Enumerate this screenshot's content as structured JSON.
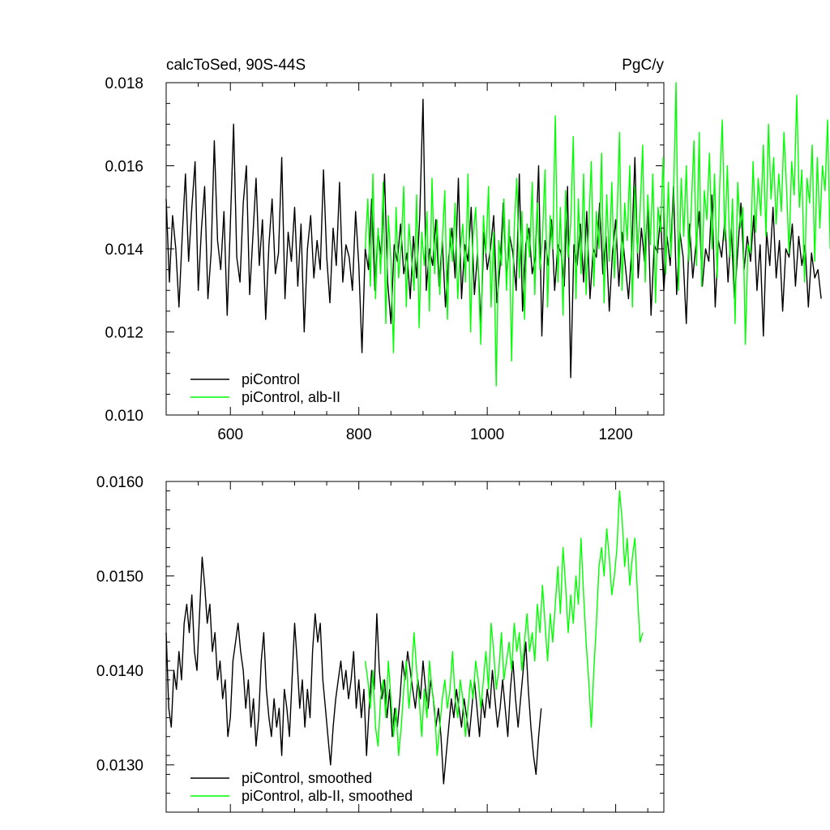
{
  "chart_data": [
    {
      "type": "line",
      "title_left": "calcToSed, 90S-44S",
      "title_right": "PgC/y",
      "xlabel": "",
      "ylabel": "",
      "xlim": [
        500,
        1275
      ],
      "ylim": [
        0.01,
        0.018
      ],
      "x_ticks": [
        600,
        800,
        1000,
        1200
      ],
      "x_tick_labels": [
        "600",
        "800",
        "1000",
        "1200"
      ],
      "x_minor_step": 50,
      "y_ticks": [
        0.01,
        0.012,
        0.014,
        0.016,
        0.018
      ],
      "y_tick_labels": [
        "0.010",
        "0.012",
        "0.014",
        "0.016",
        "0.018"
      ],
      "y_minor_step": 0.0005,
      "grid": false,
      "legend_position": "bottom-left",
      "series": [
        {
          "name": "piControl",
          "color": "#000000",
          "x_start": 500,
          "x_step": 5,
          "values": [
            0.0152,
            0.0132,
            0.0148,
            0.014,
            0.0126,
            0.0143,
            0.0158,
            0.0137,
            0.015,
            0.0161,
            0.013,
            0.0145,
            0.0155,
            0.0128,
            0.0139,
            0.0166,
            0.0142,
            0.0135,
            0.0149,
            0.0124,
            0.0146,
            0.017,
            0.0138,
            0.0132,
            0.0151,
            0.016,
            0.0129,
            0.0143,
            0.0157,
            0.0136,
            0.0147,
            0.0123,
            0.0141,
            0.0152,
            0.0134,
            0.0139,
            0.0162,
            0.0128,
            0.0144,
            0.0137,
            0.015,
            0.0131,
            0.0146,
            0.012,
            0.014,
            0.0148,
            0.0133,
            0.0142,
            0.0135,
            0.0159,
            0.0138,
            0.0127,
            0.0145,
            0.0136,
            0.0156,
            0.0132,
            0.0141,
            0.0138,
            0.013,
            0.0149,
            0.0136,
            0.0115,
            0.014,
            0.0135,
            0.0152,
            0.013,
            0.0144,
            0.0138,
            0.0158,
            0.0132,
            0.0122,
            0.0141,
            0.0137,
            0.0146,
            0.0134,
            0.0139,
            0.0128,
            0.0143,
            0.0133,
            0.0148,
            0.0176,
            0.013,
            0.014,
            0.0136,
            0.0147,
            0.0131,
            0.0142,
            0.0126,
            0.0138,
            0.0145,
            0.0133,
            0.0157,
            0.0128,
            0.0141,
            0.0137,
            0.015,
            0.0129,
            0.0139,
            0.0122,
            0.0144,
            0.0135,
            0.014,
            0.0148,
            0.0127,
            0.0136,
            0.0151,
            0.0133,
            0.0143,
            0.0139,
            0.013,
            0.0158,
            0.0125,
            0.0141,
            0.0145,
            0.0134,
            0.0138,
            0.016,
            0.0119,
            0.0142,
            0.0136,
            0.0147,
            0.013,
            0.0141,
            0.0139,
            0.0131,
            0.0155,
            0.0109,
            0.0141,
            0.0136,
            0.0146,
            0.0132,
            0.0149,
            0.0128,
            0.014,
            0.0138,
            0.0151,
            0.0134,
            0.0143,
            0.0125,
            0.0139,
            0.0147,
            0.0131,
            0.0144,
            0.0136,
            0.0128,
            0.014,
            0.0162,
            0.0133,
            0.0145,
            0.0137,
            0.015,
            0.0124,
            0.0141,
            0.0139,
            0.0148,
            0.013,
            0.0143,
            0.0136,
            0.0155,
            0.0129,
            0.0144,
            0.0138,
            0.0122,
            0.0146,
            0.0133,
            0.0141,
            0.0149,
            0.0131,
            0.014,
            0.0137,
            0.0153,
            0.0126,
            0.0142,
            0.0138,
            0.0147,
            0.0132,
            0.0145,
            0.0128,
            0.0139,
            0.0151,
            0.0135,
            0.0143,
            0.0137,
            0.0148,
            0.013,
            0.0141,
            0.0119,
            0.0144,
            0.0136,
            0.015,
            0.0133,
            0.0142,
            0.0125,
            0.014,
            0.0138,
            0.0146,
            0.0131,
            0.0143,
            0.0136,
            0.0141,
            0.0126,
            0.0139,
            0.0133,
            0.0135,
            0.0128
          ]
        },
        {
          "name": "piControl, alb-II",
          "color": "#00ff00",
          "x_start": 810,
          "x_step": 4,
          "values": [
            0.014,
            0.0152,
            0.0131,
            0.0158,
            0.0128,
            0.0145,
            0.0134,
            0.0156,
            0.0122,
            0.0148,
            0.0137,
            0.0115,
            0.015,
            0.0133,
            0.0141,
            0.0155,
            0.0126,
            0.0146,
            0.0138,
            0.013,
            0.0153,
            0.0121,
            0.0144,
            0.0136,
            0.0149,
            0.0125,
            0.0157,
            0.0134,
            0.0147,
            0.0129,
            0.0142,
            0.0154,
            0.0123,
            0.0145,
            0.0137,
            0.0151,
            0.0128,
            0.014,
            0.0146,
            0.0132,
            0.0158,
            0.012,
            0.0143,
            0.015,
            0.0135,
            0.0117,
            0.0148,
            0.0139,
            0.0155,
            0.0126,
            0.0144,
            0.0107,
            0.0142,
            0.0136,
            0.0152,
            0.013,
            0.0147,
            0.0113,
            0.0145,
            0.0157,
            0.0133,
            0.0149,
            0.0123,
            0.0146,
            0.0138,
            0.0156,
            0.0129,
            0.0151,
            0.0135,
            0.0143,
            0.0159,
            0.0126,
            0.0148,
            0.014,
            0.0172,
            0.0132,
            0.015,
            0.0124,
            0.0154,
            0.0138,
            0.0146,
            0.0167,
            0.0128,
            0.0152,
            0.0134,
            0.0158,
            0.0129,
            0.0145,
            0.0161,
            0.0131,
            0.0149,
            0.014,
            0.0163,
            0.0127,
            0.0153,
            0.0137,
            0.0156,
            0.0133,
            0.0147,
            0.0168,
            0.013,
            0.0151,
            0.0142,
            0.016,
            0.0126,
            0.0155,
            0.0139,
            0.0149,
            0.0165,
            0.0132,
            0.0153,
            0.0141,
            0.0158,
            0.0127,
            0.015,
            0.0144,
            0.0162,
            0.0134,
            0.0156,
            0.0138,
            0.0152,
            0.018,
            0.013,
            0.0157,
            0.0143,
            0.016,
            0.0137,
            0.0151,
            0.0166,
            0.0136,
            0.0168,
            0.0131,
            0.0154,
            0.0147,
            0.0163,
            0.014,
            0.0158,
            0.0133,
            0.0155,
            0.0171,
            0.0142,
            0.016,
            0.0138,
            0.0152,
            0.0122,
            0.0156,
            0.0145,
            0.015,
            0.0117,
            0.0141,
            0.0139,
            0.0161,
            0.0144,
            0.0157,
            0.0148,
            0.0165,
            0.0143,
            0.017,
            0.0152,
            0.0162,
            0.0146,
            0.0158,
            0.0149,
            0.0168,
            0.0155,
            0.0139,
            0.0161,
            0.0153,
            0.0177,
            0.015,
            0.0159,
            0.0132,
            0.0157,
            0.0151,
            0.0165,
            0.0137,
            0.0162,
            0.0145,
            0.016,
            0.0154,
            0.0171,
            0.014,
            0.015,
            0.0136,
            0.0148,
            0.0143
          ]
        }
      ]
    },
    {
      "type": "line",
      "xlabel": "",
      "ylabel": "",
      "xlim": [
        500,
        1275
      ],
      "ylim": [
        0.0125,
        0.016
      ],
      "x_ticks": [
        600,
        800,
        1000,
        1200
      ],
      "x_minor_step": 50,
      "y_ticks": [
        0.013,
        0.014,
        0.015,
        0.016
      ],
      "y_tick_labels": [
        "0.0130",
        "0.0140",
        "0.0150",
        "0.0160"
      ],
      "y_minor_step": 0.0002,
      "grid": false,
      "legend_position": "bottom-left",
      "series": [
        {
          "name": "piControl, smoothed",
          "color": "#000000",
          "x_start": 500,
          "x_step": 4,
          "values": [
            0.0144,
            0.0136,
            0.0134,
            0.014,
            0.0138,
            0.0142,
            0.0139,
            0.0145,
            0.0147,
            0.0144,
            0.0148,
            0.0142,
            0.014,
            0.0146,
            0.0152,
            0.0149,
            0.0145,
            0.0147,
            0.0142,
            0.0144,
            0.0139,
            0.0141,
            0.0137,
            0.0139,
            0.0133,
            0.0135,
            0.0141,
            0.0143,
            0.0145,
            0.0142,
            0.014,
            0.0136,
            0.0139,
            0.0134,
            0.0137,
            0.0132,
            0.0135,
            0.0141,
            0.0144,
            0.0138,
            0.0135,
            0.0133,
            0.0137,
            0.0134,
            0.0136,
            0.0131,
            0.0138,
            0.0136,
            0.0133,
            0.0139,
            0.0145,
            0.0141,
            0.0136,
            0.0139,
            0.0134,
            0.0138,
            0.0135,
            0.0142,
            0.0146,
            0.0143,
            0.0145,
            0.0139,
            0.0136,
            0.0133,
            0.013,
            0.0134,
            0.0137,
            0.0139,
            0.0141,
            0.0138,
            0.014,
            0.0137,
            0.0139,
            0.0142,
            0.0136,
            0.0139,
            0.0135,
            0.0138,
            0.0131,
            0.0136,
            0.014,
            0.0138,
            0.0146,
            0.014,
            0.0137,
            0.0139,
            0.0135,
            0.0138,
            0.0133,
            0.0136,
            0.0134,
            0.0137,
            0.0141,
            0.0139,
            0.0142,
            0.014,
            0.0138,
            0.0136,
            0.0139,
            0.0137,
            0.0141,
            0.0138,
            0.0136,
            0.0139,
            0.0137,
            0.0134,
            0.0136,
            0.0133,
            0.0128,
            0.0131,
            0.0134,
            0.0137,
            0.0135,
            0.0138,
            0.0136,
            0.0134,
            0.0137,
            0.0135,
            0.0133,
            0.0136,
            0.0139,
            0.0136,
            0.0133,
            0.0137,
            0.0135,
            0.0138,
            0.0136,
            0.014,
            0.0137,
            0.0134,
            0.0136,
            0.0139,
            0.0136,
            0.0133,
            0.0138,
            0.0141,
            0.0137,
            0.0134,
            0.0137,
            0.014,
            0.0143,
            0.0138,
            0.0134,
            0.0131,
            0.0129,
            0.0133,
            0.0136
          ]
        },
        {
          "name": "piControl, alb-II, smoothed",
          "color": "#00ff00",
          "x_start": 810,
          "x_step": 4,
          "values": [
            0.0141,
            0.0139,
            0.0136,
            0.014,
            0.0134,
            0.0132,
            0.0137,
            0.0139,
            0.0135,
            0.0141,
            0.0137,
            0.0133,
            0.0136,
            0.0131,
            0.0134,
            0.0138,
            0.0141,
            0.0136,
            0.0139,
            0.0144,
            0.014,
            0.0137,
            0.0133,
            0.0138,
            0.0135,
            0.0141,
            0.0138,
            0.0136,
            0.0131,
            0.0134,
            0.0137,
            0.0139,
            0.0136,
            0.0138,
            0.0142,
            0.0137,
            0.0135,
            0.0139,
            0.0137,
            0.0133,
            0.0136,
            0.0139,
            0.0137,
            0.0141,
            0.0139,
            0.0136,
            0.0139,
            0.0142,
            0.0138,
            0.0145,
            0.0142,
            0.0138,
            0.014,
            0.0144,
            0.0139,
            0.0141,
            0.0143,
            0.014,
            0.0145,
            0.0142,
            0.0144,
            0.014,
            0.0143,
            0.0146,
            0.0142,
            0.0144,
            0.0141,
            0.0147,
            0.0144,
            0.0149,
            0.0145,
            0.0141,
            0.0146,
            0.0143,
            0.0147,
            0.0151,
            0.0146,
            0.0153,
            0.0149,
            0.0144,
            0.0148,
            0.0145,
            0.015,
            0.0147,
            0.0154,
            0.0148,
            0.0143,
            0.0139,
            0.0134,
            0.014,
            0.0145,
            0.0151,
            0.0153,
            0.015,
            0.0155,
            0.0152,
            0.0148,
            0.015,
            0.0153,
            0.0159,
            0.0156,
            0.0151,
            0.0154,
            0.0149,
            0.0152,
            0.0154,
            0.0148,
            0.0143,
            0.0144
          ]
        }
      ]
    }
  ]
}
